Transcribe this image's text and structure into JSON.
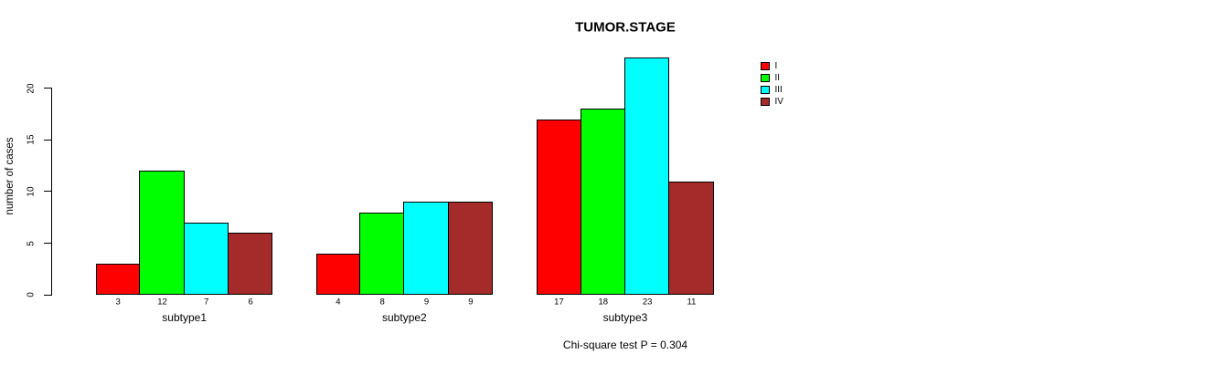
{
  "chart_data": {
    "type": "bar",
    "grouped": true,
    "title": "TUMOR.STAGE",
    "xlabel": "",
    "ylabel": "number of cases",
    "categories": [
      "subtype1",
      "subtype2",
      "subtype3"
    ],
    "series": [
      {
        "name": "I",
        "color": "#ff0000",
        "values": [
          3,
          4,
          17
        ]
      },
      {
        "name": "II",
        "color": "#00ff00",
        "values": [
          12,
          8,
          18
        ]
      },
      {
        "name": "III",
        "color": "#00ffff",
        "values": [
          7,
          9,
          23
        ]
      },
      {
        "name": "IV",
        "color": "#a52a2a",
        "values": [
          6,
          9,
          11
        ]
      }
    ],
    "bar_value_labels_shown": true,
    "yticks": [
      0,
      5,
      10,
      15,
      20
    ],
    "ylim": [
      0,
      23.5
    ],
    "grid": false,
    "legend": {
      "position": "top-right",
      "entries": [
        "I",
        "II",
        "III",
        "IV"
      ]
    },
    "annotation": "Chi-square test P = 0.304"
  }
}
